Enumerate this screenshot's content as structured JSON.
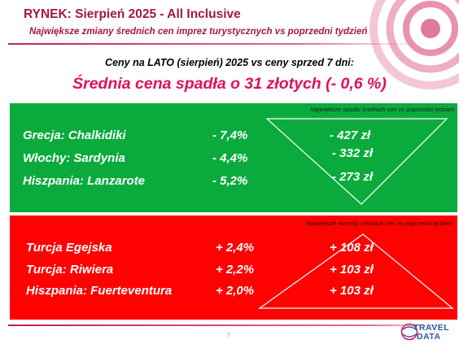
{
  "header": {
    "title": "RYNEK: Sierpień 2025 - All Inclusive",
    "subtitle": "Największe zmiany średnich cen imprez turystycznych vs poprzedni tydzień"
  },
  "intro": "Ceny na LATO (sierpień) 2025 vs ceny sprzed 7 dni:",
  "headline": "Średnia cena spadła o 31 złotych (- 0,6 %)",
  "decreases": {
    "caption": "Największe spadki średnich cen vs poprzedni tydzień",
    "rows": [
      {
        "name": "Grecja: Chalkidiki",
        "pct": "- 7,4%",
        "value": "- 427 zł"
      },
      {
        "name": "Włochy: Sardynia",
        "pct": "- 4,4%",
        "value": "- 332 zł"
      },
      {
        "name": "Hiszpania: Lanzarote",
        "pct": "- 5,2%",
        "value": "- 273 zł"
      }
    ]
  },
  "increases": {
    "caption": "Największe wzrosty średnich cen vs poprzedni tydzień",
    "rows": [
      {
        "name": "Turcja Egejska",
        "pct": "+ 2,4%",
        "value": "+ 108 zł"
      },
      {
        "name": "Turcja: Riwiera",
        "pct": "+ 2,2%",
        "value": "+ 103 zł"
      },
      {
        "name": "Hiszpania: Fuerteventura",
        "pct": "+ 2,0%",
        "value": "+ 103 zł"
      }
    ]
  },
  "footer": {
    "page_number": "7",
    "logo_line1": "TRAVEL",
    "logo_line2": "DATA"
  },
  "colors": {
    "title": "#a6193c",
    "headline": "#e0105c",
    "green_panel": "#0aab3c",
    "red_panel": "#fd0200"
  }
}
